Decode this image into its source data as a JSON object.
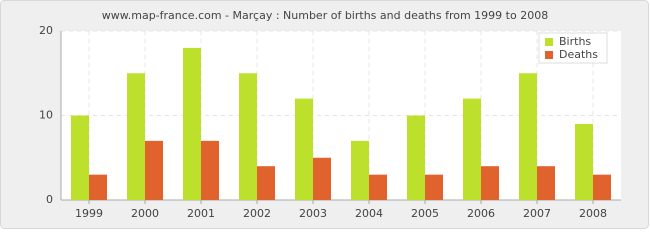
{
  "chart_data": {
    "type": "bar",
    "title": "www.map-france.com - Marçay : Number of births and deaths from 1999 to 2008",
    "categories": [
      "1999",
      "2000",
      "2001",
      "2002",
      "2003",
      "2004",
      "2005",
      "2006",
      "2007",
      "2008"
    ],
    "series": [
      {
        "name": "Births",
        "color": "#bde02c",
        "values": [
          10,
          15,
          18,
          15,
          12,
          7,
          10,
          12,
          15,
          9
        ]
      },
      {
        "name": "Deaths",
        "color": "#e0622d",
        "values": [
          3,
          7,
          7,
          4,
          5,
          3,
          3,
          4,
          4,
          3
        ]
      }
    ],
    "ylim": [
      0,
      20
    ],
    "yticks": [
      0,
      10,
      20
    ],
    "grid": true,
    "legend": "top-right"
  }
}
